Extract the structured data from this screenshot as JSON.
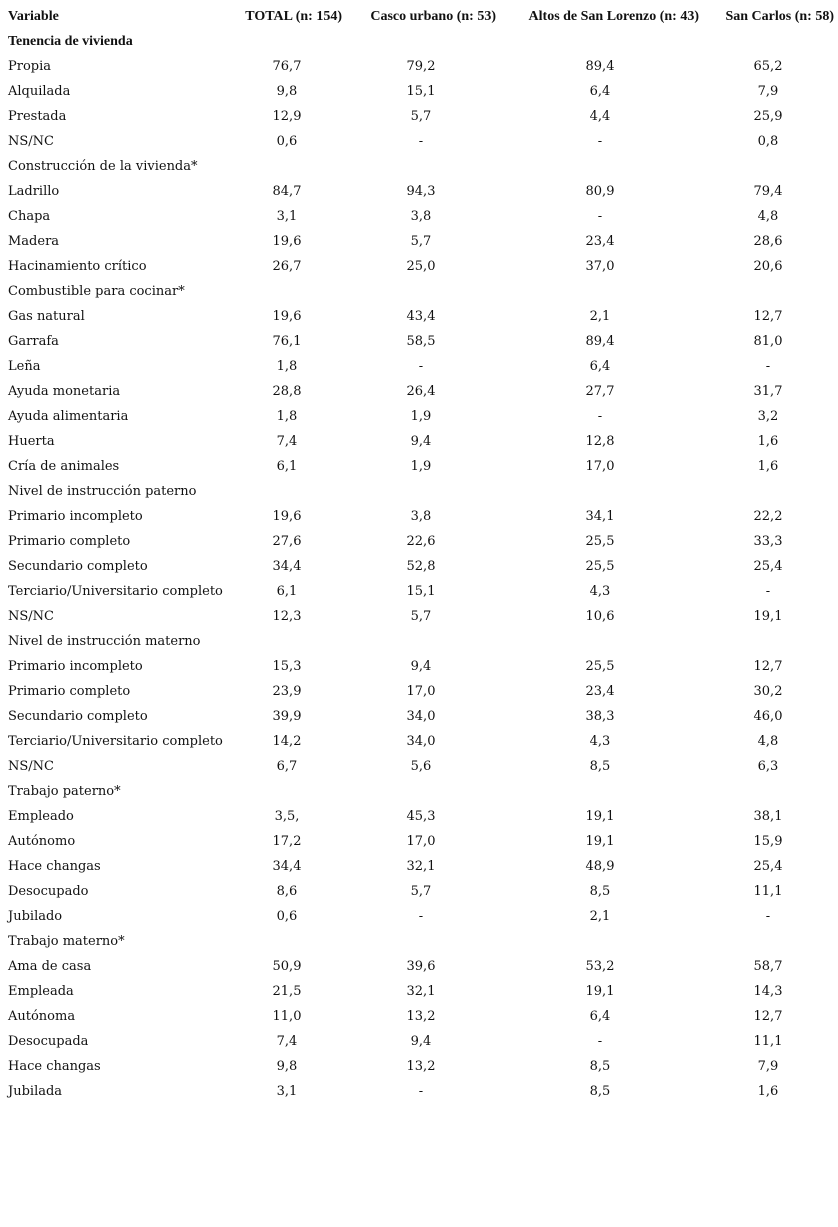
{
  "header": {
    "variable": "Variable",
    "columns": [
      "TOTAL (n: 154)",
      "Casco urbano (n: 53)",
      "Altos de San Lorenzo (n: 43)",
      "San Carlos (n: 58)"
    ]
  },
  "rows": [
    {
      "label": "Tenencia de vivienda",
      "bold": true,
      "values": []
    },
    {
      "label": "Propia",
      "values": [
        "76,7",
        "79,2",
        "89,4",
        "65,2"
      ]
    },
    {
      "label": "Alquilada",
      "values": [
        "9,8",
        "15,1",
        "6,4",
        "7,9"
      ]
    },
    {
      "label": "Prestada",
      "values": [
        "12,9",
        "5,7",
        "4,4",
        "25,9"
      ]
    },
    {
      "label": "NS/NC",
      "values": [
        "0,6",
        "-",
        "-",
        "0,8"
      ]
    },
    {
      "label": "Construcción de la vivienda*",
      "values": []
    },
    {
      "label": "Ladrillo",
      "values": [
        "84,7",
        "94,3",
        "80,9",
        "79,4"
      ]
    },
    {
      "label": "Chapa",
      "values": [
        "3,1",
        "3,8",
        "-",
        "4,8"
      ]
    },
    {
      "label": "Madera",
      "values": [
        "19,6",
        "5,7",
        "23,4",
        "28,6"
      ]
    },
    {
      "label": "Hacinamiento crítico",
      "values": [
        "26,7",
        "25,0",
        "37,0",
        "20,6"
      ]
    },
    {
      "label": "Combustible para cocinar*",
      "values": []
    },
    {
      "label": "Gas natural",
      "values": [
        "19,6",
        "43,4",
        "2,1",
        "12,7"
      ]
    },
    {
      "label": "Garrafa",
      "values": [
        "76,1",
        "58,5",
        "89,4",
        "81,0"
      ]
    },
    {
      "label": "Leña",
      "values": [
        "1,8",
        "-",
        "6,4",
        "-"
      ]
    },
    {
      "label": "Ayuda monetaria",
      "values": [
        "28,8",
        "26,4",
        "27,7",
        "31,7"
      ]
    },
    {
      "label": "Ayuda alimentaria",
      "values": [
        "1,8",
        "1,9",
        "-",
        "3,2"
      ]
    },
    {
      "label": "Huerta",
      "values": [
        "7,4",
        "9,4",
        "12,8",
        "1,6"
      ]
    },
    {
      "label": "Cría de animales",
      "values": [
        "6,1",
        "1,9",
        "17,0",
        "1,6"
      ]
    },
    {
      "label": "Nivel de instrucción paterno",
      "values": []
    },
    {
      "label": "Primario incompleto",
      "values": [
        "19,6",
        "3,8",
        "34,1",
        "22,2"
      ]
    },
    {
      "label": "Primario completo",
      "values": [
        "27,6",
        "22,6",
        "25,5",
        "33,3"
      ]
    },
    {
      "label": "Secundario completo",
      "values": [
        "34,4",
        "52,8",
        "25,5",
        "25,4"
      ]
    },
    {
      "label": "Terciario/Universitario completo",
      "values": [
        "6,1",
        "15,1",
        "4,3",
        "-"
      ]
    },
    {
      "label": "NS/NC",
      "values": [
        "12,3",
        "5,7",
        "10,6",
        "19,1"
      ]
    },
    {
      "label": "Nivel de instrucción materno",
      "values": []
    },
    {
      "label": "Primario incompleto",
      "values": [
        "15,3",
        "9,4",
        "25,5",
        "12,7"
      ]
    },
    {
      "label": "Primario completo",
      "values": [
        "23,9",
        "17,0",
        "23,4",
        "30,2"
      ]
    },
    {
      "label": "Secundario completo",
      "values": [
        "39,9",
        "34,0",
        "38,3",
        "46,0"
      ]
    },
    {
      "label": "Terciario/Universitario completo",
      "values": [
        "14,2",
        "34,0",
        "4,3",
        "4,8"
      ]
    },
    {
      "label": "NS/NC",
      "values": [
        "6,7",
        "5,6",
        "8,5",
        "6,3"
      ]
    },
    {
      "label": "Trabajo paterno*",
      "values": []
    },
    {
      "label": "Empleado",
      "values": [
        "3,5,",
        "45,3",
        "19,1",
        "38,1"
      ]
    },
    {
      "label": "Autónomo",
      "values": [
        "17,2",
        "17,0",
        "19,1",
        "15,9"
      ]
    },
    {
      "label": "Hace changas",
      "values": [
        "34,4",
        "32,1",
        "48,9",
        "25,4"
      ]
    },
    {
      "label": "Desocupado",
      "values": [
        "8,6",
        "5,7",
        "8,5",
        "11,1"
      ]
    },
    {
      "label": "Jubilado",
      "values": [
        "0,6",
        "-",
        "2,1",
        "-"
      ]
    },
    {
      "label": "Trabajo materno*",
      "values": []
    },
    {
      "label": "Ama de casa",
      "values": [
        "50,9",
        "39,6",
        "53,2",
        "58,7"
      ]
    },
    {
      "label": "Empleada",
      "values": [
        "21,5",
        "32,1",
        "19,1",
        "14,3"
      ]
    },
    {
      "label": "Autónoma",
      "values": [
        "11,0",
        "13,2",
        "6,4",
        "12,7"
      ]
    },
    {
      "label": "Desocupada",
      "values": [
        "7,4",
        "9,4",
        "-",
        "11,1"
      ]
    },
    {
      "label": "Hace changas",
      "values": [
        "9,8",
        "13,2",
        "8,5",
        "7,9"
      ]
    },
    {
      "label": "Jubilada",
      "values": [
        "3,1",
        "-",
        "8,5",
        "1,6"
      ]
    }
  ]
}
